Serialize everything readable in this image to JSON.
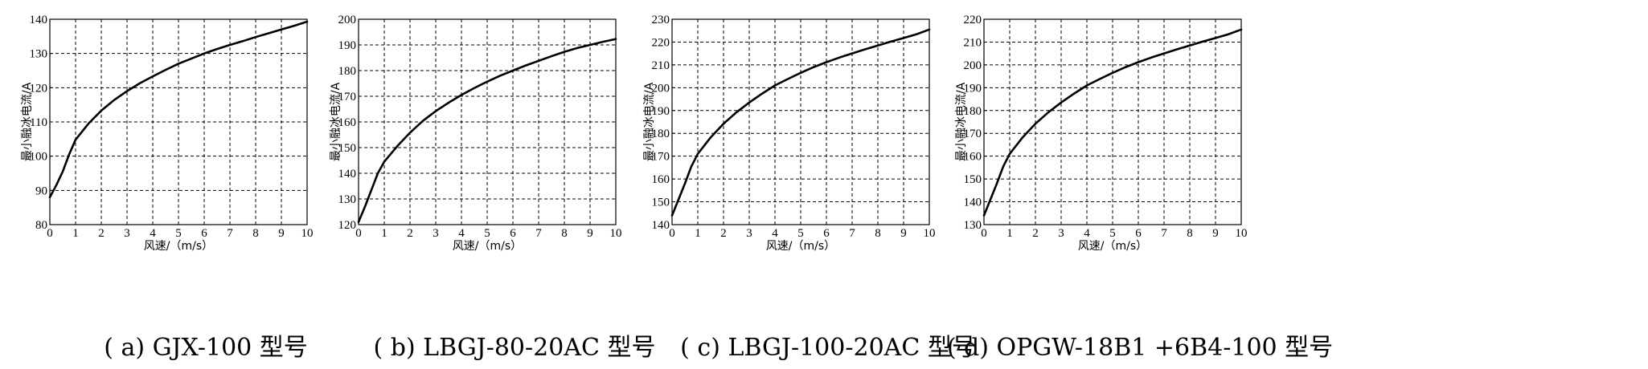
{
  "chart_data": [
    {
      "type": "line",
      "caption": "( a) GJX-100 型号",
      "xlabel": "风速/（m/s）",
      "ylabel": "最小融冰电流/A",
      "xlim": [
        0,
        10
      ],
      "ylim": [
        80,
        140
      ],
      "xticks": [
        0,
        1,
        2,
        3,
        4,
        5,
        6,
        7,
        8,
        9,
        10
      ],
      "yticks": [
        80,
        90,
        100,
        110,
        120,
        130,
        140
      ],
      "grid": true,
      "series": [
        {
          "x": [
            0,
            0.25,
            0.5,
            0.75,
            1,
            1.5,
            2,
            2.5,
            3,
            3.5,
            4,
            4.5,
            5,
            5.5,
            6,
            6.5,
            7,
            7.5,
            8,
            8.5,
            9,
            9.5,
            10
          ],
          "values": [
            88,
            91.5,
            95.5,
            100.5,
            104.8,
            109.5,
            113.3,
            116.4,
            119.0,
            121.3,
            123.3,
            125.2,
            127.0,
            128.5,
            130.0,
            131.3,
            132.5,
            133.6,
            134.8,
            135.9,
            137.0,
            138.1,
            139.3
          ]
        }
      ]
    },
    {
      "type": "line",
      "caption": "( b) LBGJ-80-20AC 型号",
      "xlabel": "风速/（m/s）",
      "ylabel": "最小融冰电流/A",
      "xlim": [
        0,
        10
      ],
      "ylim": [
        120,
        200
      ],
      "xticks": [
        0,
        1,
        2,
        3,
        4,
        5,
        6,
        7,
        8,
        9,
        10
      ],
      "yticks": [
        120,
        130,
        140,
        150,
        160,
        170,
        180,
        190,
        200
      ],
      "grid": true,
      "series": [
        {
          "x": [
            0,
            0.25,
            0.5,
            0.75,
            1,
            1.5,
            2,
            2.5,
            3,
            3.5,
            4,
            4.5,
            5,
            5.5,
            6,
            6.5,
            7,
            7.5,
            8,
            8.5,
            9,
            9.5,
            10
          ],
          "values": [
            121,
            127,
            133.5,
            140,
            144.5,
            150.5,
            155.8,
            160.4,
            164.2,
            167.5,
            170.5,
            173.2,
            175.7,
            178.0,
            180.0,
            182.0,
            183.8,
            185.6,
            187.3,
            188.8,
            190.0,
            191.2,
            192.3
          ]
        }
      ]
    },
    {
      "type": "line",
      "caption": "( c) LBGJ-100-20AC 型号",
      "xlabel": "风速/（m/s）",
      "ylabel": "最小融冰电流/A",
      "xlim": [
        0,
        10
      ],
      "ylim": [
        140,
        230
      ],
      "xticks": [
        0,
        1,
        2,
        3,
        4,
        5,
        6,
        7,
        8,
        9,
        10
      ],
      "yticks": [
        140,
        150,
        160,
        170,
        180,
        190,
        200,
        210,
        220,
        230
      ],
      "grid": true,
      "series": [
        {
          "x": [
            0,
            0.25,
            0.5,
            0.75,
            1,
            1.5,
            2,
            2.5,
            3,
            3.5,
            4,
            4.5,
            5,
            5.5,
            6,
            6.5,
            7,
            7.5,
            8,
            8.5,
            9,
            9.5,
            10
          ],
          "values": [
            144,
            151,
            158,
            165.5,
            171,
            178.2,
            184.2,
            189.2,
            193.5,
            197.4,
            201.0,
            203.8,
            206.5,
            209.0,
            211.2,
            213.2,
            215.0,
            216.8,
            218.5,
            220.2,
            221.8,
            223.4,
            225.5
          ]
        }
      ]
    },
    {
      "type": "line",
      "caption": "( d) OPGW-18B1 +6B4-100 型号",
      "xlabel": "风速/（m/s）",
      "ylabel": "最小融冰电流/A",
      "xlim": [
        0,
        10
      ],
      "ylim": [
        130,
        220
      ],
      "xticks": [
        0,
        1,
        2,
        3,
        4,
        5,
        6,
        7,
        8,
        9,
        10
      ],
      "yticks": [
        130,
        140,
        150,
        160,
        170,
        180,
        190,
        200,
        210,
        220
      ],
      "grid": true,
      "series": [
        {
          "x": [
            0,
            0.25,
            0.5,
            0.75,
            1,
            1.5,
            2,
            2.5,
            3,
            3.5,
            4,
            4.5,
            5,
            5.5,
            6,
            6.5,
            7,
            7.5,
            8,
            8.5,
            9,
            9.5,
            10
          ],
          "values": [
            134,
            141,
            148,
            155.5,
            161,
            168.2,
            174.2,
            179.2,
            183.5,
            187.4,
            191.0,
            193.8,
            196.5,
            199.0,
            201.2,
            203.2,
            205.0,
            206.8,
            208.5,
            210.2,
            211.8,
            213.4,
            215.5
          ]
        }
      ]
    }
  ]
}
